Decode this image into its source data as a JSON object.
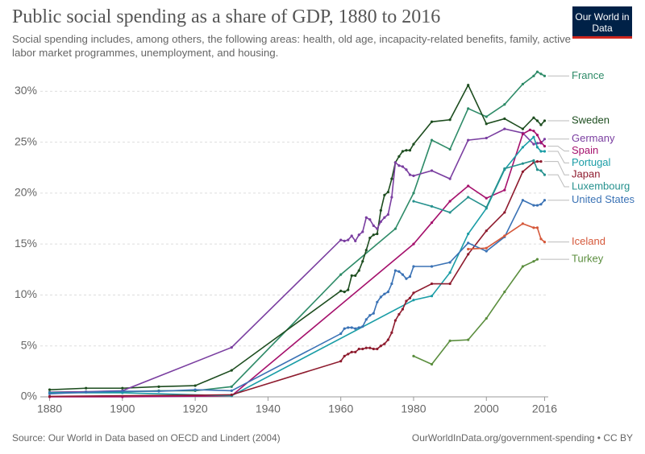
{
  "chart_data": {
    "type": "line",
    "title": "Public social spending as a share of GDP, 1880 to 2016",
    "subtitle": "Social spending includes, among others, the following areas: health, old age, incapacity-related benefits, family, active labor market programmes, unemployment, and housing.",
    "logo": "Our World in Data",
    "source": "Source: Our World in Data based on OECD and Lindert (2004)",
    "footer": "OurWorldInData.org/government-spending • CC BY",
    "xlim": [
      1877,
      2017
    ],
    "xticks": [
      1880,
      1900,
      1920,
      1940,
      1960,
      1980,
      2000,
      2016
    ],
    "ylim": [
      0,
      32
    ],
    "yticks": [
      {
        "value": 0,
        "label": "0%"
      },
      {
        "value": 5,
        "label": "5%"
      },
      {
        "value": 10,
        "label": "10%"
      },
      {
        "value": 15,
        "label": "15%"
      },
      {
        "value": 20,
        "label": "20%"
      },
      {
        "value": 25,
        "label": "25%"
      },
      {
        "value": 30,
        "label": "30%"
      }
    ],
    "grid": true,
    "series": [
      {
        "name": "France",
        "color": "#2e8b68",
        "x": [
          1880,
          1890,
          1900,
          1910,
          1920,
          1930,
          1960,
          1975,
          1980,
          1985,
          1990,
          1995,
          2000,
          2005,
          2010,
          2013,
          2014,
          2015,
          2016
        ],
        "values": [
          0.46,
          0.5,
          0.5,
          0.6,
          0.6,
          1.0,
          12.0,
          16.5,
          20.0,
          25.2,
          24.3,
          28.3,
          27.5,
          28.7,
          30.7,
          31.5,
          31.9,
          31.7,
          31.5
        ]
      },
      {
        "name": "Sweden",
        "color": "#1d4d1f",
        "x": [
          1880,
          1890,
          1900,
          1910,
          1920,
          1930,
          1960,
          1961,
          1962,
          1963,
          1964,
          1965,
          1966,
          1967,
          1968,
          1969,
          1970,
          1971,
          1972,
          1973,
          1974,
          1975,
          1976,
          1977,
          1978,
          1979,
          1980,
          1985,
          1990,
          1995,
          2000,
          2005,
          2010,
          2013,
          2014,
          2015,
          2016
        ],
        "values": [
          0.7,
          0.85,
          0.85,
          1.0,
          1.1,
          2.6,
          10.4,
          10.3,
          10.5,
          11.9,
          11.9,
          12.4,
          13.3,
          14.4,
          15.6,
          15.9,
          16.0,
          18.3,
          19.8,
          20.1,
          21.4,
          23.0,
          23.6,
          24.1,
          24.2,
          24.2,
          24.8,
          27.0,
          27.2,
          30.6,
          26.8,
          27.3,
          26.3,
          27.4,
          27.1,
          26.7,
          27.1
        ]
      },
      {
        "name": "Germany",
        "color": "#7a3ea0",
        "x": [
          1880,
          1890,
          1900,
          1930,
          1960,
          1961,
          1962,
          1963,
          1964,
          1965,
          1966,
          1967,
          1968,
          1969,
          1970,
          1971,
          1972,
          1973,
          1974,
          1975,
          1976,
          1977,
          1978,
          1979,
          1980,
          1985,
          1990,
          1995,
          2000,
          2005,
          2010,
          2013,
          2014,
          2015,
          2016
        ],
        "values": [
          0.45,
          0.5,
          0.6,
          4.85,
          15.4,
          15.3,
          15.4,
          15.8,
          15.3,
          15.9,
          16.2,
          17.6,
          17.4,
          16.8,
          16.5,
          17.2,
          17.6,
          17.9,
          19.6,
          23.0,
          22.7,
          22.6,
          22.3,
          21.8,
          21.7,
          22.2,
          21.4,
          25.2,
          25.4,
          26.3,
          25.9,
          24.8,
          24.9,
          24.9,
          25.3
        ]
      },
      {
        "name": "Spain",
        "color": "#a5106c",
        "x": [
          1880,
          1900,
          1930,
          1980,
          1985,
          1990,
          1995,
          2000,
          2005,
          2010,
          2012,
          2013,
          2014,
          2015,
          2016
        ],
        "values": [
          0.0,
          0.0,
          0.1,
          15.0,
          17.1,
          19.2,
          20.7,
          19.5,
          20.3,
          25.8,
          26.2,
          26.1,
          25.7,
          25.0,
          24.6
        ]
      },
      {
        "name": "Portugal",
        "color": "#1a9da6",
        "x": [
          1880,
          1900,
          1930,
          1980,
          1985,
          1990,
          1995,
          2000,
          2005,
          2010,
          2013,
          2014,
          2015,
          2016
        ],
        "values": [
          0.4,
          0.4,
          0.1,
          9.5,
          9.9,
          12.2,
          16.0,
          18.5,
          22.3,
          24.5,
          25.5,
          24.5,
          24.1,
          24.1
        ]
      },
      {
        "name": "Japan",
        "color": "#8e1b2e",
        "x": [
          1880,
          1930,
          1960,
          1961,
          1962,
          1963,
          1964,
          1965,
          1966,
          1967,
          1968,
          1969,
          1970,
          1971,
          1972,
          1973,
          1974,
          1975,
          1976,
          1977,
          1978,
          1979,
          1980,
          1985,
          1990,
          1995,
          2000,
          2005,
          2010,
          2013,
          2014,
          2015
        ],
        "values": [
          0.05,
          0.2,
          3.5,
          4.0,
          4.2,
          4.4,
          4.4,
          4.7,
          4.7,
          4.8,
          4.8,
          4.7,
          4.7,
          5.0,
          5.2,
          5.6,
          6.3,
          7.5,
          8.1,
          8.6,
          9.4,
          9.7,
          10.2,
          11.1,
          11.1,
          14.0,
          16.3,
          18.1,
          22.1,
          23.0,
          23.1,
          23.1
        ]
      },
      {
        "name": "Luxembourg",
        "color": "#26918e",
        "x": [
          1980,
          1985,
          1990,
          1995,
          2000,
          2005,
          2010,
          2013,
          2014,
          2015,
          2016
        ],
        "values": [
          19.2,
          18.7,
          18.1,
          19.6,
          18.6,
          22.4,
          22.9,
          23.2,
          22.3,
          22.2,
          21.8
        ]
      },
      {
        "name": "United States",
        "color": "#3a72b5",
        "x": [
          1880,
          1890,
          1900,
          1910,
          1920,
          1930,
          1960,
          1961,
          1962,
          1963,
          1964,
          1965,
          1966,
          1967,
          1968,
          1969,
          1970,
          1971,
          1972,
          1973,
          1974,
          1975,
          1976,
          1977,
          1978,
          1979,
          1980,
          1985,
          1990,
          1995,
          2000,
          2005,
          2010,
          2013,
          2014,
          2015,
          2016
        ],
        "values": [
          0.3,
          0.45,
          0.55,
          0.55,
          0.7,
          0.6,
          6.2,
          6.7,
          6.8,
          6.8,
          6.7,
          6.8,
          6.9,
          7.6,
          8.0,
          8.2,
          9.3,
          9.8,
          10.1,
          10.3,
          11.1,
          12.4,
          12.3,
          12.0,
          11.6,
          11.8,
          12.8,
          12.8,
          13.2,
          15.1,
          14.3,
          15.7,
          19.3,
          18.8,
          18.8,
          18.9,
          19.3
        ]
      },
      {
        "name": "Iceland",
        "color": "#d5583a",
        "x": [
          1995,
          2000,
          2005,
          2010,
          2013,
          2014,
          2015,
          2016
        ],
        "values": [
          14.5,
          14.6,
          15.8,
          17.0,
          16.6,
          16.6,
          15.5,
          15.2
        ]
      },
      {
        "name": "Turkey",
        "color": "#5b8e3e",
        "x": [
          1980,
          1985,
          1990,
          1995,
          2000,
          2005,
          2010,
          2013,
          2014
        ],
        "values": [
          4.0,
          3.2,
          5.5,
          5.6,
          7.7,
          10.3,
          12.8,
          13.3,
          13.5
        ]
      }
    ]
  }
}
